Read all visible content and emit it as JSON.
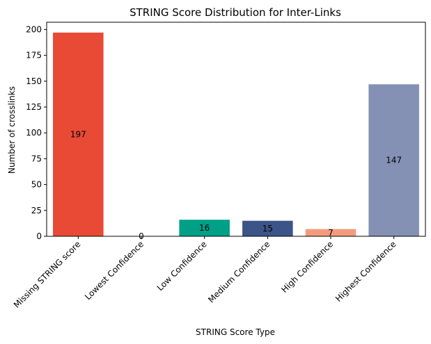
{
  "chart_data": {
    "type": "bar",
    "title": "STRING Score Distribution for Inter-Links",
    "xlabel": "STRING Score Type",
    "ylabel": "Number of crosslinks",
    "categories": [
      "Missing STRING score",
      "Lowest Confidence",
      "Low Confidence",
      "Medium Confidence",
      "High Confidence",
      "Highest Confidence"
    ],
    "values": [
      197,
      0,
      16,
      15,
      7,
      147
    ],
    "colors": [
      "#e84a35",
      "#4dbbd5",
      "#00a087",
      "#3c5488",
      "#f39b7f",
      "#8491b4"
    ],
    "ylim": [
      0,
      207
    ],
    "yticks": [
      0,
      25,
      50,
      75,
      100,
      125,
      150,
      175,
      200
    ],
    "grid": false,
    "legend": "none"
  }
}
